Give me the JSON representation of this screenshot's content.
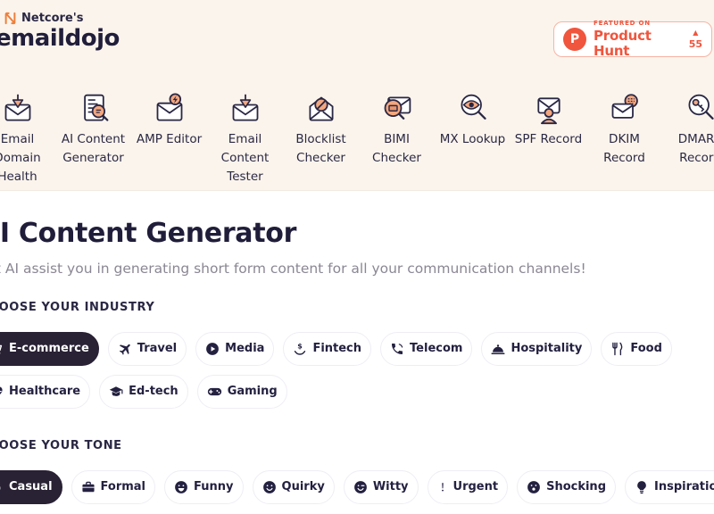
{
  "colors": {
    "background_cream": "#FBF4EC",
    "text_dark": "#2A2744",
    "accent_orange": "#EE7F3B",
    "product_hunt_red": "#F0553D",
    "selected_pill": "#292134",
    "icon_peach": "#F4A77E"
  },
  "header": {
    "brand_prefix": "Netcore's",
    "brand_name": "emaildojo",
    "product_hunt": {
      "featured_on": "FEATURED ON",
      "name": "Product Hunt",
      "upvote_glyph": "▲",
      "votes": "55",
      "logo_letter": "P"
    }
  },
  "nav": {
    "items": [
      {
        "label": "Email Domain Health Checker",
        "icon": "envelope-arrow-down-icon"
      },
      {
        "label": "AI Content Generator",
        "icon": "doc-magnifier-icon"
      },
      {
        "label": "AMP Editor",
        "icon": "envelope-lightning-icon"
      },
      {
        "label": "Email Content Tester",
        "icon": "envelope-arrow-down-icon"
      },
      {
        "label": "Blocklist Checker",
        "icon": "envelope-block-icon"
      },
      {
        "label": "BIMI Checker",
        "icon": "envelope-badge-magnifier-icon"
      },
      {
        "label": "MX Lookup",
        "icon": "magnifier-eye-icon"
      },
      {
        "label": "SPF Record",
        "icon": "envelope-person-icon"
      },
      {
        "label": "DKIM Record",
        "icon": "envelope-fingerprint-icon"
      },
      {
        "label": "DMARC Record",
        "icon": "magnifier-key-icon"
      }
    ]
  },
  "main": {
    "title": "AI Content Generator",
    "subtitle": "Let AI assist you in generating short form content for all your communication channels!",
    "industry": {
      "label": "CHOOSE YOUR INDUSTRY",
      "options": [
        {
          "label": "E-commerce",
          "icon": "cart-icon",
          "selected": true
        },
        {
          "label": "Travel",
          "icon": "plane-icon",
          "selected": false
        },
        {
          "label": "Media",
          "icon": "play-circle-icon",
          "selected": false
        },
        {
          "label": "Fintech",
          "icon": "hand-dollar-icon",
          "selected": false
        },
        {
          "label": "Telecom",
          "icon": "phone-signal-icon",
          "selected": false
        },
        {
          "label": "Hospitality",
          "icon": "cloche-icon",
          "selected": false
        },
        {
          "label": "Food",
          "icon": "fork-knife-icon",
          "selected": false
        },
        {
          "label": "Healthcare",
          "icon": "heart-pulse-icon",
          "selected": false
        },
        {
          "label": "Ed-tech",
          "icon": "grad-cap-icon",
          "selected": false
        },
        {
          "label": "Gaming",
          "icon": "gamepad-icon",
          "selected": false
        }
      ]
    },
    "tone": {
      "label": "CHOOSE YOUR TONE",
      "options": [
        {
          "label": "Casual",
          "icon": "peace-hand-icon",
          "selected": true
        },
        {
          "label": "Formal",
          "icon": "briefcase-icon",
          "selected": false
        },
        {
          "label": "Funny",
          "icon": "face-laugh-icon",
          "selected": false
        },
        {
          "label": "Quirky",
          "icon": "face-smile-icon",
          "selected": false
        },
        {
          "label": "Witty",
          "icon": "face-wink-icon",
          "selected": false
        },
        {
          "label": "Urgent",
          "icon": "exclamation-icon",
          "selected": false
        },
        {
          "label": "Shocking",
          "icon": "face-shock-icon",
          "selected": false
        },
        {
          "label": "Inspirational",
          "icon": "bulb-icon",
          "selected": false
        }
      ]
    }
  }
}
